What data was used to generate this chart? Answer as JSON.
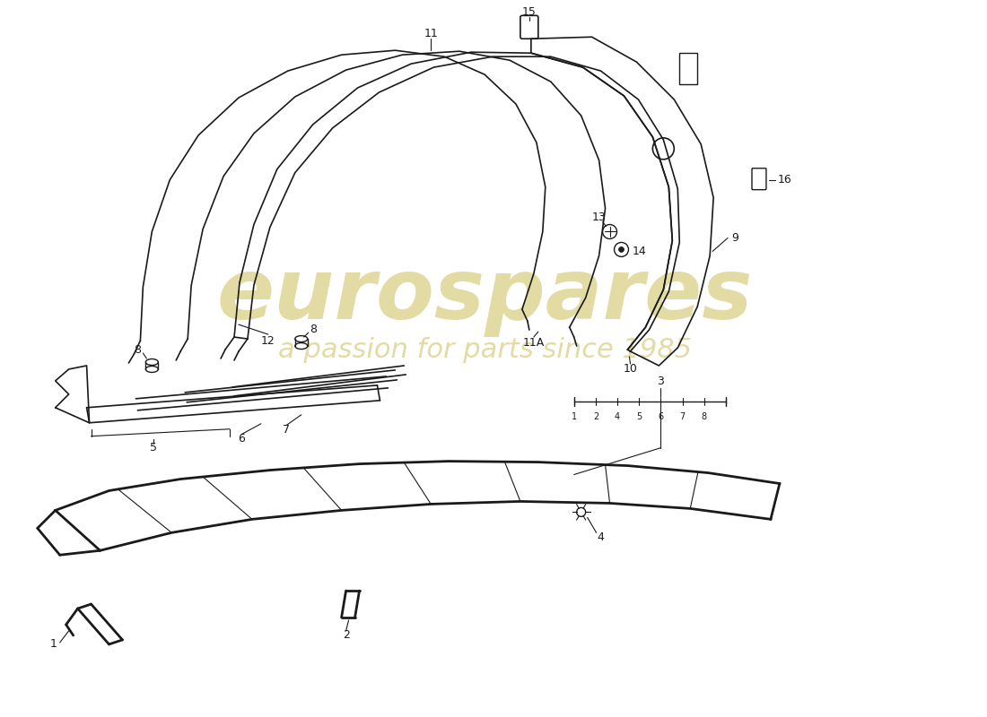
{
  "background_color": "#ffffff",
  "line_color": "#1a1a1a",
  "watermark_text1": "eurospares",
  "watermark_text2": "a passion for parts since 1985",
  "watermark_color": "#c8b84a",
  "watermark_alpha": 0.5
}
